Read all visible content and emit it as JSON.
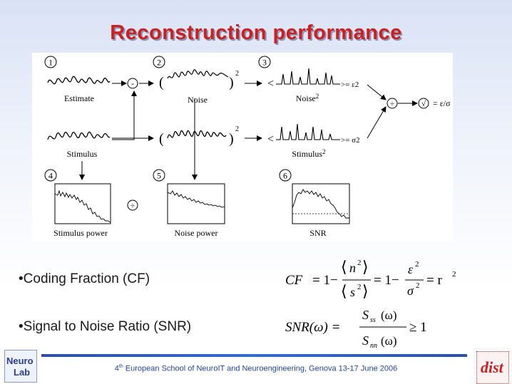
{
  "slide": {
    "title": "Reconstruction performance"
  },
  "diagram": {
    "step_numbers": [
      "1",
      "2",
      "3",
      "4",
      "5",
      "6"
    ],
    "labels": {
      "estimate": "Estimate",
      "stimulus": "Stimulus",
      "noise": "Noise",
      "noise_squared": "Noise",
      "stimulus_squared": "Stimulus",
      "stimulus_power": "Stimulus power",
      "noise_power": "Noise power",
      "snr": "SNR"
    },
    "operators": {
      "minus": "-",
      "divide": "÷",
      "sqrt": "√",
      "plus": "÷"
    },
    "annotations": {
      "power2": "2",
      "noise_mean": ">= ε2",
      "stimulus_mean": ">= σ2",
      "result": "=  ε/σ"
    }
  },
  "bullets": [
    "•Coding Fraction (CF)",
    "•Signal to Noise Ratio (SNR)"
  ],
  "formulas": {
    "cf": {
      "lhs": "CF",
      "eq1": "= 1−",
      "num1": "n",
      "den1": "s",
      "eq2": "= 1−",
      "num2": "ε",
      "den2": "σ",
      "eq3": "= r",
      "exp": "2"
    },
    "snr": {
      "lhs": "SNR(ω) =",
      "num": "S",
      "num_sub": "ss",
      "num_arg": "(ω)",
      "den": "S",
      "den_sub": "nn",
      "den_arg": "(ω)",
      "rhs": "≥ 1"
    }
  },
  "footer": {
    "ordinal": "4",
    "ordinal_suffix": "th",
    "text": " European School of NeuroIT and Neuroengineering, Genova 13-17 June 2006"
  },
  "logos": {
    "left_line1": "Neuro",
    "left_line2": "Lab",
    "right": "dist"
  }
}
